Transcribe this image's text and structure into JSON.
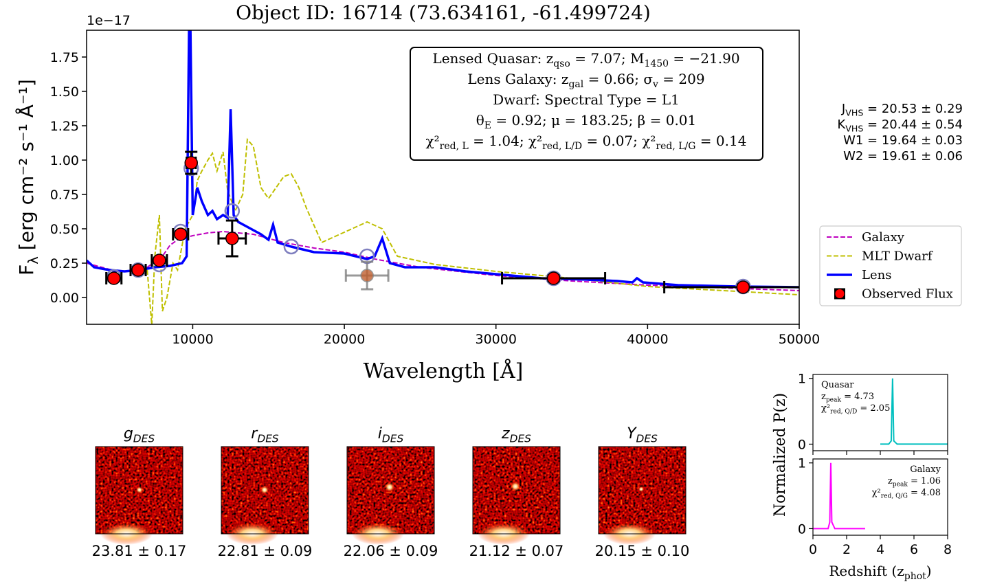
{
  "chart_data": [
    {
      "type": "line",
      "title": "Object ID: 16714 (73.634161, -61.499724)",
      "offset_text": "1e−17",
      "xlabel": "Wavelength [Å]",
      "ylabel": [
        "F",
        "λ",
        " [erg cm⁻² s⁻¹ Å⁻¹]"
      ],
      "xlim": [
        3000,
        50000
      ],
      "ylim": [
        -0.195,
        1.945
      ],
      "xticks": [
        10000,
        20000,
        30000,
        40000,
        50000
      ],
      "yticks": [
        {
          "value": 0,
          "label": "0.00"
        },
        {
          "value": 0.25,
          "label": "0.25"
        },
        {
          "value": 0.5,
          "label": "0.50"
        },
        {
          "value": 0.75,
          "label": "0.75"
        },
        {
          "value": 1,
          "label": "1.00"
        },
        {
          "value": 1.25,
          "label": "1.25"
        },
        {
          "value": 1.5,
          "label": "1.50"
        },
        {
          "value": 1.75,
          "label": "1.75"
        }
      ],
      "legend": "center right",
      "series": [
        {
          "name": "Galaxy",
          "color": "#bf00bf",
          "style": "dashed",
          "x": [
            3000,
            4000,
            5000,
            6000,
            7000,
            8000,
            8500,
            9000,
            10000,
            11000,
            12000,
            13000,
            14000,
            16000,
            18000,
            20000,
            22000,
            25000,
            30000,
            35000,
            40000,
            45000,
            50000
          ],
          "values": [
            0.25,
            0.22,
            0.19,
            0.19,
            0.22,
            0.3,
            0.38,
            0.42,
            0.45,
            0.47,
            0.48,
            0.47,
            0.46,
            0.4,
            0.36,
            0.33,
            0.28,
            0.22,
            0.16,
            0.12,
            0.09,
            0.07,
            0.05
          ]
        },
        {
          "name": "MLT Dwarf",
          "color": "#bfbf00",
          "style": "dashed",
          "x": [
            7000,
            7300,
            7500,
            7800,
            8000,
            8300,
            8700,
            9000,
            9500,
            10000,
            10300,
            10600,
            11000,
            11300,
            11600,
            12000,
            12300,
            12800,
            13300,
            13600,
            14000,
            14500,
            15000,
            15500,
            16000,
            16500,
            17000,
            17500,
            18500,
            19500,
            20500,
            21500,
            22500,
            23500,
            26000,
            30000,
            35000,
            40000,
            45000,
            50000
          ],
          "values": [
            0.2,
            -0.2,
            0.3,
            0.6,
            -0.1,
            0.0,
            0.25,
            0.2,
            0.5,
            0.6,
            0.85,
            0.92,
            1.0,
            1.05,
            0.92,
            1.06,
            0.78,
            0.63,
            0.75,
            1.15,
            1.1,
            0.8,
            0.72,
            0.8,
            0.88,
            0.9,
            0.8,
            0.65,
            0.4,
            0.45,
            0.5,
            0.55,
            0.5,
            0.3,
            0.24,
            0.19,
            0.14,
            0.08,
            0.05,
            0.02
          ]
        },
        {
          "name": "Lens",
          "color": "#0000ff",
          "style": "solid",
          "x": [
            3000,
            3500,
            4500,
            5500,
            6500,
            7500,
            8500,
            9300,
            9600,
            9800,
            10000,
            10300,
            10600,
            11000,
            11300,
            11600,
            12000,
            12300,
            12500,
            12700,
            13000,
            13500,
            14000,
            14500,
            15000,
            15300,
            15600,
            16500,
            18000,
            20000,
            21500,
            22000,
            22500,
            23000,
            24000,
            26000,
            28000,
            30000,
            33000,
            36000,
            38000,
            39000,
            39300,
            39700,
            42000,
            46000,
            50000
          ],
          "values": [
            0.27,
            0.22,
            0.2,
            0.19,
            0.2,
            0.22,
            0.23,
            0.25,
            0.3,
            2.4,
            0.6,
            0.8,
            0.7,
            0.6,
            0.63,
            0.57,
            0.6,
            0.58,
            1.37,
            0.6,
            0.55,
            0.52,
            0.49,
            0.46,
            0.42,
            0.53,
            0.4,
            0.37,
            0.33,
            0.32,
            0.28,
            0.3,
            0.43,
            0.25,
            0.22,
            0.22,
            0.19,
            0.17,
            0.14,
            0.13,
            0.12,
            0.11,
            0.14,
            0.11,
            0.09,
            0.08,
            0.075
          ]
        },
        {
          "name": "Observed Flux",
          "color": "#ff0000",
          "x": [
            4800,
            6400,
            7800,
            9200,
            9900,
            12600,
            33800,
            46300
          ],
          "values": [
            0.14,
            0.2,
            0.27,
            0.46,
            0.98,
            0.43,
            0.14,
            0.075
          ],
          "xerr": [
            500,
            500,
            500,
            500,
            300,
            900,
            3400,
            5200
          ],
          "yerr": [
            0.02,
            0.02,
            0.02,
            0.02,
            0.08,
            0.13,
            0.02,
            0.02
          ]
        }
      ],
      "model_flux": {
        "color": "#7f7fbf",
        "x": [
          4800,
          6400,
          7800,
          9200,
          9900,
          12600,
          16500,
          21500,
          33800,
          46300
        ],
        "values": [
          0.15,
          0.2,
          0.24,
          0.48,
          0.94,
          0.63,
          0.37,
          0.3,
          0.14,
          0.08
        ]
      },
      "excluded_flux": {
        "color": "#808080",
        "x": [
          21500
        ],
        "values": [
          0.16
        ],
        "xerr": [
          1400
        ],
        "yerr": [
          0.1
        ]
      },
      "annotation": [
        [
          "Lensed Quasar: z",
          "qso",
          " = 7.07; M",
          "1450",
          " = −21.90"
        ],
        [
          "Lens Galaxy: z",
          "gal",
          " = 0.66; σ",
          "v",
          " = 209"
        ],
        [
          "Dwarf: Spectral Type = L1"
        ],
        [
          "θ",
          "E",
          " = 0.92; μ = 183.25; β = 0.01"
        ],
        [
          "χ²",
          "red, L",
          " = 1.04; χ²",
          "red, L/D",
          " = 0.07; χ²",
          "red, L/G",
          " = 0.14"
        ]
      ],
      "side_text": [
        [
          "J",
          "VHS",
          " = 20.53 ± 0.29"
        ],
        [
          "K",
          "VHS",
          " = 20.44 ± 0.54"
        ],
        [
          "W1 = 19.64 ± 0.03"
        ],
        [
          "W2 = 19.61 ± 0.06"
        ]
      ]
    },
    {
      "type": "line",
      "xlim": [
        0,
        8
      ],
      "ylim": [
        -0.1,
        1.06
      ],
      "yticks": [
        0,
        1
      ],
      "annotation_corner": "upper left",
      "annotation": [
        [
          "Quasar"
        ],
        [
          "z",
          "peak",
          " = 4.73"
        ],
        [
          "χ²",
          "red, Q/D",
          " = 2.05"
        ]
      ],
      "series": [
        {
          "color": "#00bfbf",
          "x": [
            4,
            4.5,
            4.65,
            4.73,
            4.8,
            5,
            8
          ],
          "values": [
            0,
            0,
            0.05,
            1,
            0.05,
            0,
            0
          ]
        }
      ]
    },
    {
      "type": "line",
      "xlim": [
        0,
        8
      ],
      "ylim": [
        -0.1,
        1.06
      ],
      "yticks": [
        0,
        1
      ],
      "xticks": [
        0,
        2,
        4,
        6,
        8
      ],
      "annotation_corner": "upper right",
      "ylabel": "Normalized P(z)",
      "xlabel": [
        "Redshift (z",
        "phot",
        ")"
      ],
      "annotation": [
        [
          "Galaxy"
        ],
        [
          "z",
          "peak",
          " = 1.06"
        ],
        [
          "χ²",
          "red, Q/G",
          " = 4.08"
        ]
      ],
      "series": [
        {
          "color": "#ff00ff",
          "x": [
            0,
            0.9,
            1.0,
            1.06,
            1.12,
            1.3,
            3.1
          ],
          "values": [
            0,
            0,
            0.1,
            1,
            0.1,
            0,
            0
          ]
        }
      ]
    }
  ],
  "cutouts": [
    {
      "band": [
        "g",
        "DES"
      ],
      "mag": "23.81 ± 0.17"
    },
    {
      "band": [
        "r",
        "DES"
      ],
      "mag": "22.81 ± 0.09"
    },
    {
      "band": [
        "i",
        "DES"
      ],
      "mag": "22.06 ± 0.09"
    },
    {
      "band": [
        "z",
        "DES"
      ],
      "mag": "21.12 ± 0.07"
    },
    {
      "band": [
        "Y",
        "DES"
      ],
      "mag": "20.15 ± 0.10"
    }
  ]
}
